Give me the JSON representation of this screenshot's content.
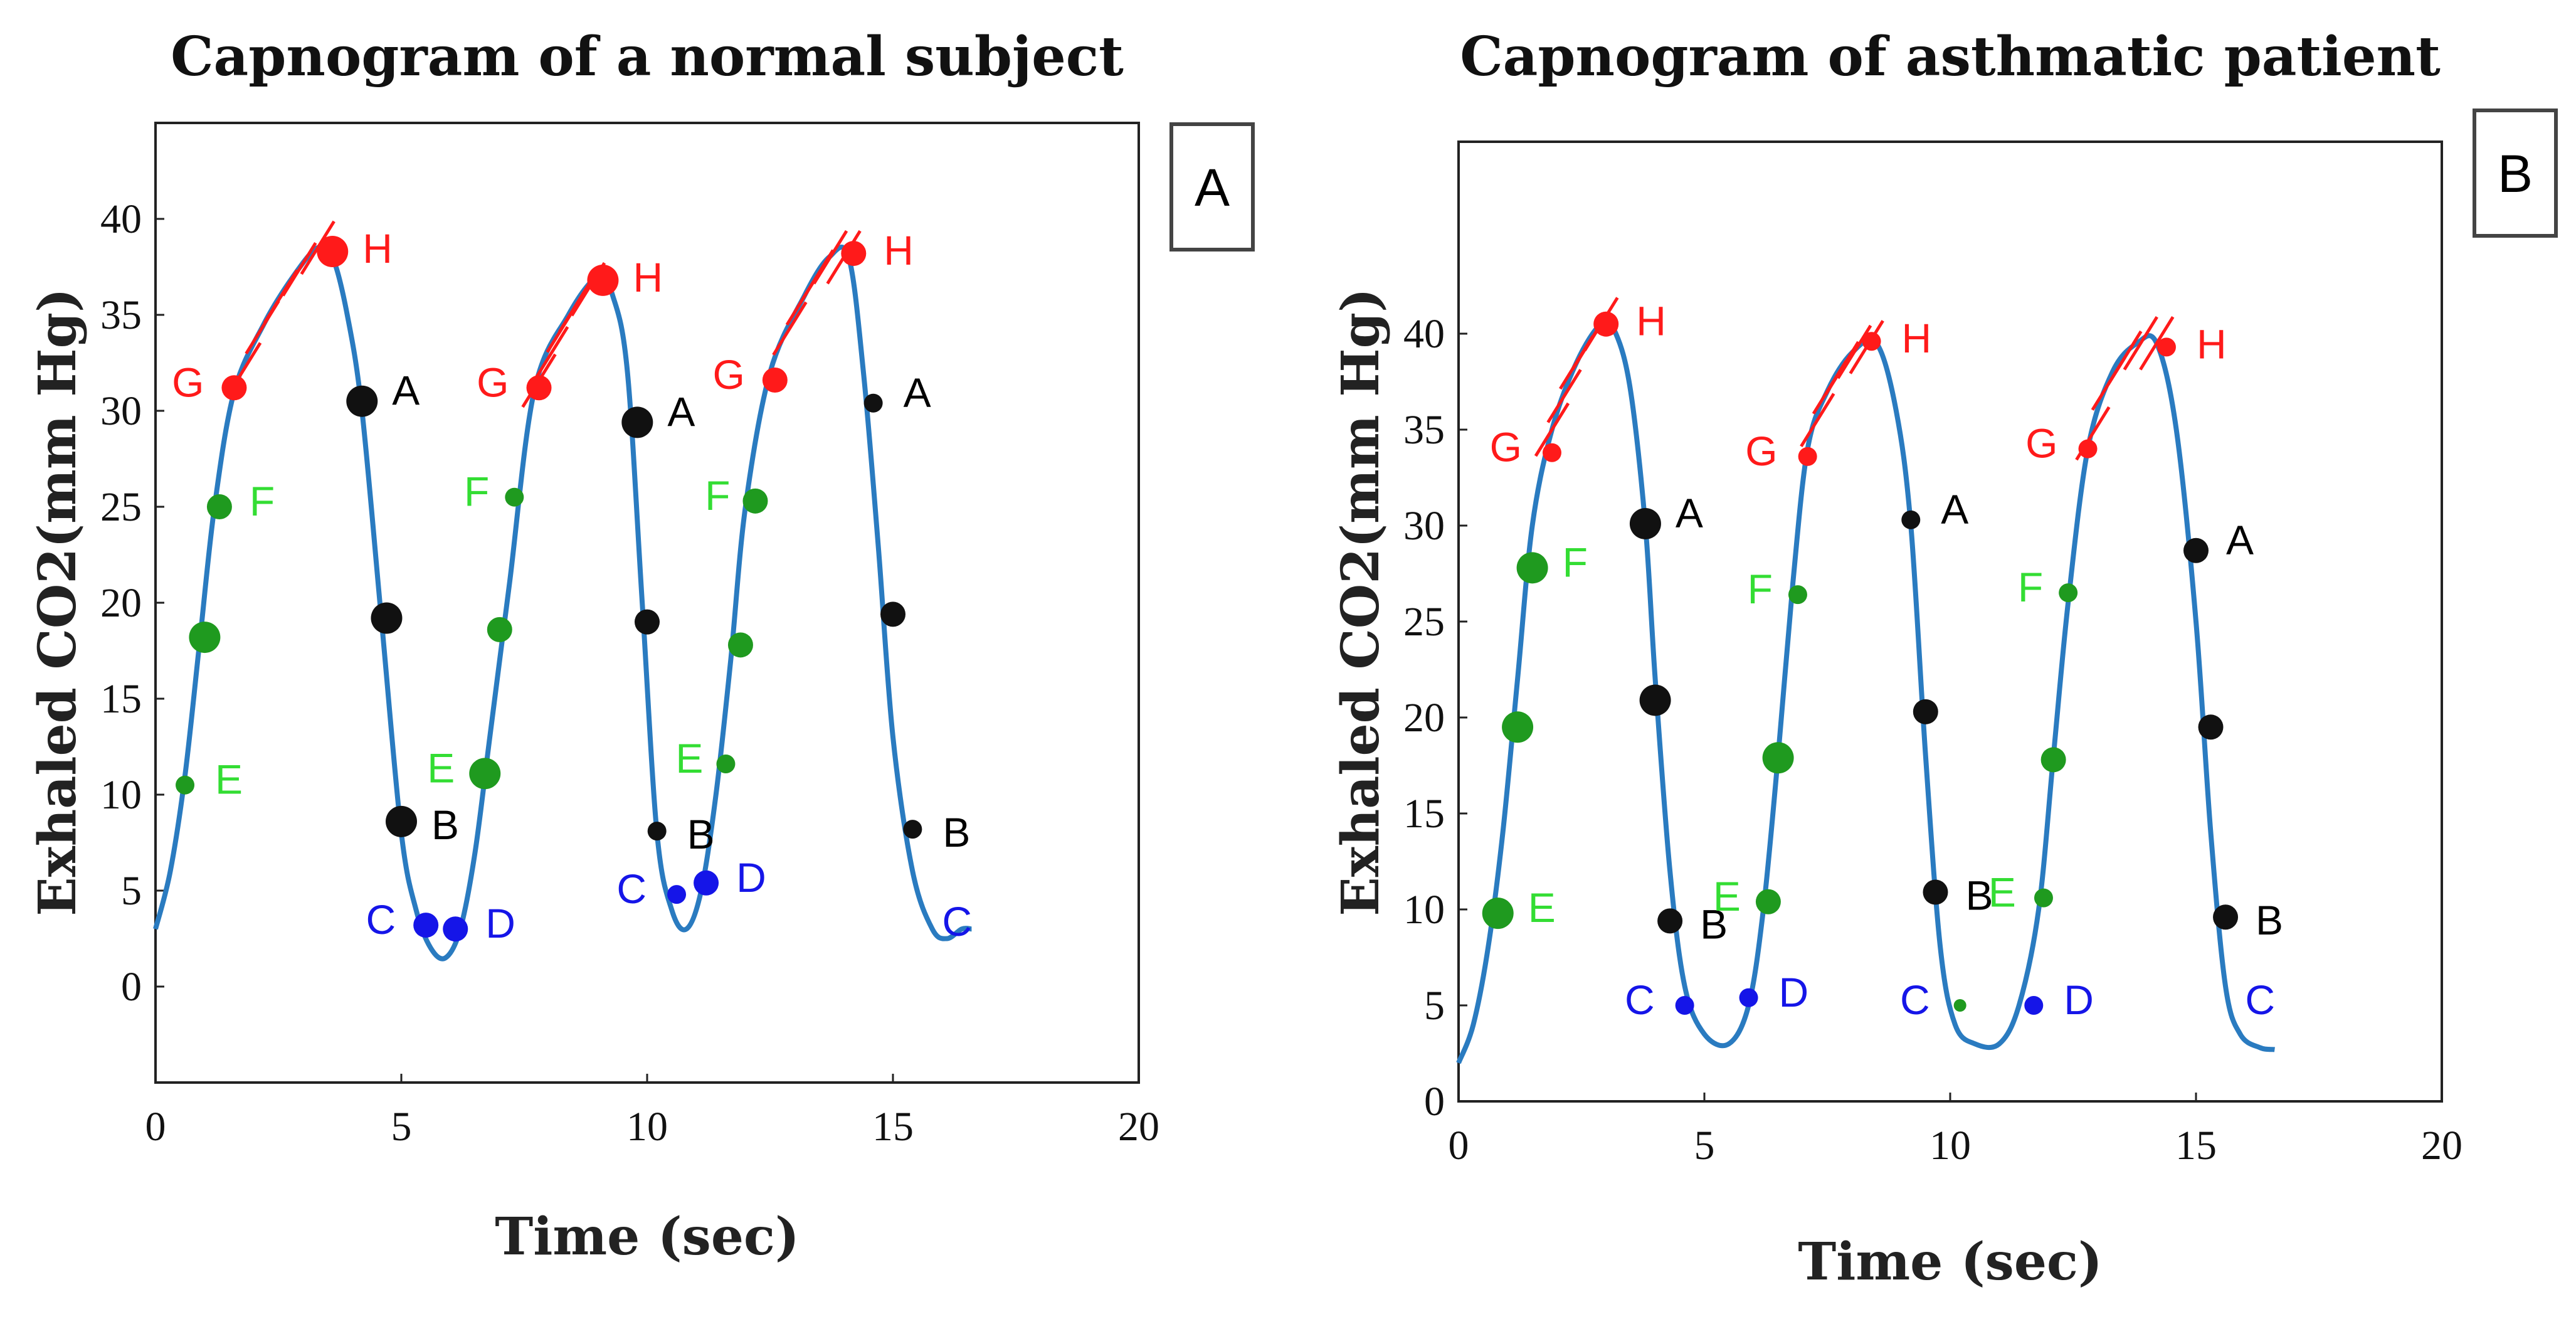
{
  "chart_data": [
    {
      "type": "line",
      "panel": "A",
      "title": "Capnogram of  a normal subject",
      "xlabel": "Time (sec)",
      "ylabel": "Exhaled CO2(mm Hg)",
      "xlim": [
        0,
        20
      ],
      "ylim": [
        -5,
        45
      ],
      "xticks": [
        0,
        5,
        10,
        15,
        20
      ],
      "yticks": [
        0,
        5,
        10,
        15,
        20,
        25,
        30,
        35,
        40
      ],
      "line_color": "#2a7bc0",
      "series": [
        {
          "name": "CO2",
          "x": [
            0,
            0.3,
            0.6,
            0.9,
            1.2,
            1.6,
            2.2,
            2.8,
            3.3,
            3.6,
            3.9,
            4.2,
            4.6,
            5.0,
            5.3,
            5.6,
            5.9,
            6.2,
            6.5,
            6.8,
            7.2,
            7.7,
            8.4,
            9.0,
            9.3,
            9.6,
            9.9,
            10.2,
            10.5,
            10.8,
            11.1,
            11.4,
            11.7,
            12.0,
            12.5,
            13.2,
            13.7,
            14.1,
            14.4,
            14.7,
            15.0,
            15.4,
            15.8,
            16.1,
            16.4,
            16.6
          ],
          "y": [
            3,
            6,
            11,
            18,
            25,
            31,
            34.5,
            37,
            38.5,
            38,
            35,
            30,
            19,
            8,
            4,
            2,
            1.5,
            3,
            7,
            13,
            21,
            31,
            35,
            37,
            36,
            32,
            20,
            8,
            4,
            3,
            5,
            10,
            17,
            25,
            32,
            36,
            38,
            38,
            32,
            23,
            13,
            6,
            3,
            2.5,
            3,
            3
          ]
        }
      ],
      "points": [
        {
          "label": "H",
          "x": 3.6,
          "y": 38.3,
          "color": "#ff1a1a",
          "size": "large"
        },
        {
          "label": "G",
          "x": 1.6,
          "y": 31.2,
          "color": "#ff1a1a"
        },
        {
          "label": "F",
          "x": 1.3,
          "y": 25,
          "color": "#1f9a1f"
        },
        {
          "label": "",
          "x": 1.0,
          "y": 18.2,
          "color": "#1f9a1f",
          "size": "large"
        },
        {
          "label": "E",
          "x": 0.6,
          "y": 10.5,
          "color": "#1f9a1f",
          "size": "small"
        },
        {
          "label": "A",
          "x": 4.2,
          "y": 30.5,
          "color": "#111111",
          "size": "large"
        },
        {
          "label": "",
          "x": 4.7,
          "y": 19.2,
          "color": "#111111",
          "size": "large"
        },
        {
          "label": "B",
          "x": 5.0,
          "y": 8.6,
          "color": "#111111",
          "size": "large"
        },
        {
          "label": "C",
          "x": 5.5,
          "y": 3.2,
          "color": "#1515e8"
        },
        {
          "label": "D",
          "x": 6.1,
          "y": 3.0,
          "color": "#1515e8"
        },
        {
          "label": "E",
          "x": 6.7,
          "y": 11.1,
          "color": "#1f9a1f",
          "size": "large"
        },
        {
          "label": "",
          "x": 7.0,
          "y": 18.6,
          "color": "#1f9a1f"
        },
        {
          "label": "F",
          "x": 7.3,
          "y": 25.5,
          "color": "#1f9a1f",
          "size": "small"
        },
        {
          "label": "G",
          "x": 7.8,
          "y": 31.2,
          "color": "#ff1a1a"
        },
        {
          "label": "H",
          "x": 9.1,
          "y": 36.8,
          "color": "#ff1a1a",
          "size": "large"
        },
        {
          "label": "A",
          "x": 9.8,
          "y": 29.4,
          "color": "#111111",
          "size": "large"
        },
        {
          "label": "",
          "x": 10.0,
          "y": 19.0,
          "color": "#111111"
        },
        {
          "label": "B",
          "x": 10.2,
          "y": 8.1,
          "color": "#111111",
          "size": "small"
        },
        {
          "label": "C",
          "x": 10.6,
          "y": 4.8,
          "color": "#1515e8",
          "size": "small"
        },
        {
          "label": "D",
          "x": 11.2,
          "y": 5.4,
          "color": "#1515e8"
        },
        {
          "label": "E",
          "x": 11.6,
          "y": 11.6,
          "color": "#1f9a1f",
          "size": "small"
        },
        {
          "label": "",
          "x": 11.9,
          "y": 17.8,
          "color": "#1f9a1f"
        },
        {
          "label": "F",
          "x": 12.2,
          "y": 25.3,
          "color": "#1f9a1f"
        },
        {
          "label": "G",
          "x": 12.6,
          "y": 31.6,
          "color": "#ff1a1a"
        },
        {
          "label": "H",
          "x": 14.2,
          "y": 38.2,
          "color": "#ff1a1a"
        },
        {
          "label": "A",
          "x": 14.6,
          "y": 30.4,
          "color": "#111111",
          "size": "small"
        },
        {
          "label": "",
          "x": 15.0,
          "y": 19.4,
          "color": "#111111"
        },
        {
          "label": "B",
          "x": 15.4,
          "y": 8.2,
          "color": "#111111",
          "size": "small"
        },
        {
          "label": "C",
          "x": 16.0,
          "y": 3.1,
          "color": "#1515e8",
          "marker": false
        }
      ],
      "hatch_segments": [
        {
          "x1": 1.8,
          "x2": 3.3
        },
        {
          "x1": 7.8,
          "x2": 8.8
        },
        {
          "x1": 12.9,
          "x2": 14.0
        }
      ]
    },
    {
      "type": "line",
      "panel": "B",
      "title": "Capnogram of asthmatic patient",
      "xlabel": "Time (sec)",
      "ylabel": "Exhaled CO2(mm Hg)",
      "xlim": [
        0,
        20
      ],
      "ylim": [
        0,
        50
      ],
      "xticks": [
        0,
        5,
        10,
        15,
        20
      ],
      "yticks": [
        0,
        5,
        10,
        15,
        20,
        25,
        30,
        35,
        40
      ],
      "line_color": "#2a7bc0",
      "series": [
        {
          "name": "CO2",
          "x": [
            0,
            0.3,
            0.6,
            0.9,
            1.2,
            1.5,
            1.9,
            2.4,
            2.9,
            3.2,
            3.5,
            3.8,
            4.0,
            4.3,
            4.6,
            5.0,
            5.5,
            5.9,
            6.2,
            6.5,
            6.8,
            7.1,
            7.5,
            8.0,
            8.5,
            8.9,
            9.2,
            9.5,
            9.8,
            10.1,
            10.5,
            11.0,
            11.4,
            11.8,
            12.1,
            12.4,
            12.8,
            13.3,
            13.8,
            14.2,
            14.6,
            15.0,
            15.3,
            15.6,
            15.9,
            16.3,
            16.6
          ],
          "y": [
            2,
            4,
            8,
            14,
            22,
            30,
            35,
            38.5,
            40.5,
            40,
            37,
            30,
            22,
            12,
            6,
            3.5,
            3,
            5,
            10,
            18,
            27,
            34,
            37,
            39,
            39.5,
            36,
            30,
            18,
            8,
            4,
            3,
            3,
            5,
            10,
            18,
            26,
            34,
            38,
            39.5,
            39.5,
            35,
            25,
            14,
            6,
            3.5,
            2.8,
            2.7
          ]
        }
      ],
      "points": [
        {
          "label": "H",
          "x": 3.0,
          "y": 40.5,
          "color": "#ff1a1a"
        },
        {
          "label": "G",
          "x": 1.9,
          "y": 33.8,
          "color": "#ff1a1a",
          "size": "small"
        },
        {
          "label": "F",
          "x": 1.5,
          "y": 27.8,
          "color": "#1f9a1f",
          "size": "large"
        },
        {
          "label": "",
          "x": 1.2,
          "y": 19.5,
          "color": "#1f9a1f",
          "size": "large"
        },
        {
          "label": "E",
          "x": 0.8,
          "y": 9.8,
          "color": "#1f9a1f",
          "size": "large"
        },
        {
          "label": "A",
          "x": 3.8,
          "y": 30.1,
          "color": "#111111",
          "size": "large"
        },
        {
          "label": "",
          "x": 4.0,
          "y": 20.9,
          "color": "#111111",
          "size": "large"
        },
        {
          "label": "B",
          "x": 4.3,
          "y": 9.4,
          "color": "#111111"
        },
        {
          "label": "C",
          "x": 4.6,
          "y": 5.0,
          "color": "#1515e8",
          "size": "small"
        },
        {
          "label": "D",
          "x": 5.9,
          "y": 5.4,
          "color": "#1515e8",
          "size": "small"
        },
        {
          "label": "E",
          "x": 6.3,
          "y": 10.4,
          "color": "#1f9a1f"
        },
        {
          "label": "",
          "x": 6.5,
          "y": 17.9,
          "color": "#1f9a1f",
          "size": "large"
        },
        {
          "label": "F",
          "x": 6.9,
          "y": 26.4,
          "color": "#1f9a1f",
          "size": "small"
        },
        {
          "label": "G",
          "x": 7.1,
          "y": 33.6,
          "color": "#ff1a1a",
          "size": "small"
        },
        {
          "label": "H",
          "x": 8.4,
          "y": 39.6,
          "color": "#ff1a1a",
          "size": "small"
        },
        {
          "label": "A",
          "x": 9.2,
          "y": 30.3,
          "color": "#111111",
          "size": "small"
        },
        {
          "label": "",
          "x": 9.5,
          "y": 20.3,
          "color": "#111111"
        },
        {
          "label": "B",
          "x": 9.7,
          "y": 10.9,
          "color": "#111111"
        },
        {
          "label": "C",
          "x": 10.2,
          "y": 5.0,
          "color": "#1f9a1f",
          "size": "tiny"
        },
        {
          "label": "D",
          "x": 11.7,
          "y": 5.0,
          "color": "#1515e8",
          "size": "small"
        },
        {
          "label": "E",
          "x": 11.9,
          "y": 10.6,
          "color": "#1f9a1f",
          "size": "small"
        },
        {
          "label": "",
          "x": 12.1,
          "y": 17.8,
          "color": "#1f9a1f"
        },
        {
          "label": "F",
          "x": 12.4,
          "y": 26.5,
          "color": "#1f9a1f",
          "size": "small"
        },
        {
          "label": "G",
          "x": 12.8,
          "y": 34.0,
          "color": "#ff1a1a",
          "size": "small"
        },
        {
          "label": "H",
          "x": 14.4,
          "y": 39.3,
          "color": "#ff1a1a",
          "size": "small"
        },
        {
          "label": "A",
          "x": 15.0,
          "y": 28.7,
          "color": "#111111"
        },
        {
          "label": "",
          "x": 15.3,
          "y": 19.5,
          "color": "#111111"
        },
        {
          "label": "B",
          "x": 15.6,
          "y": 9.6,
          "color": "#111111"
        },
        {
          "label": "C",
          "x": 16.0,
          "y": 5.0,
          "color": "#1515e8",
          "marker": false
        }
      ],
      "hatch_segments": [
        {
          "x1": 1.9,
          "x2": 2.9
        },
        {
          "x1": 7.3,
          "x2": 8.3
        },
        {
          "x1": 12.9,
          "x2": 14.2
        }
      ]
    }
  ]
}
